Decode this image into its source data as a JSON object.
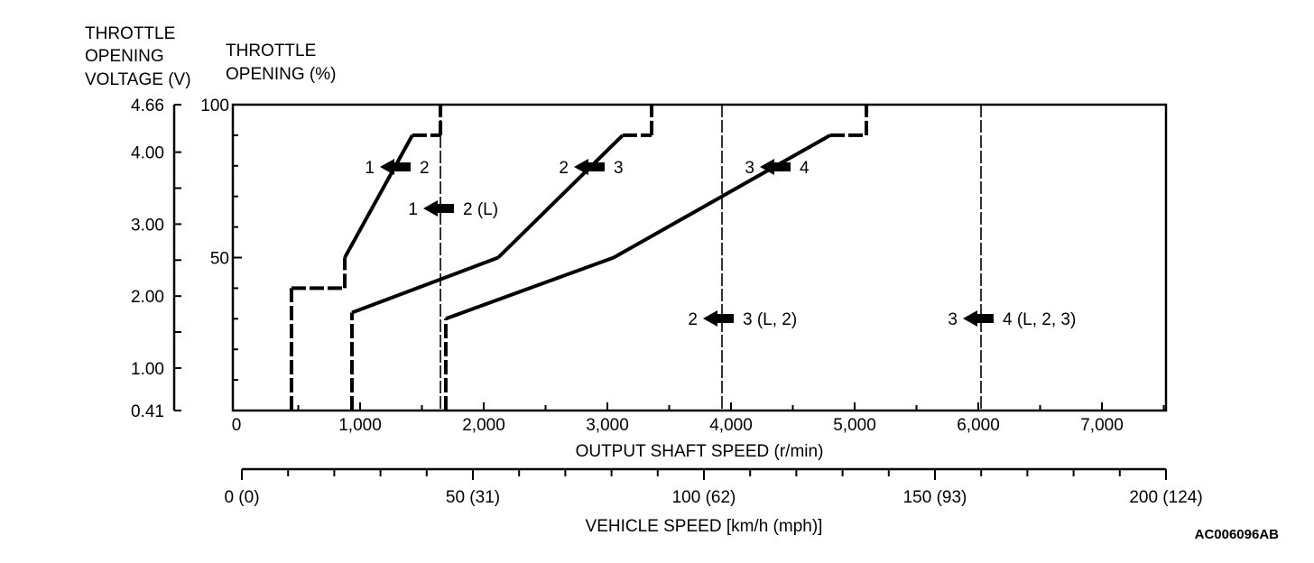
{
  "chart_data": {
    "type": "line",
    "title": "",
    "code": "AC006096AB",
    "y_left_label": [
      "THROTTLE",
      "OPENING",
      "VOLTAGE (V)"
    ],
    "y_label": [
      "THROTTLE",
      "OPENING (%)"
    ],
    "xlabel": "OUTPUT SHAFT SPEED (r/min)",
    "x2label": "VEHICLE SPEED [km/h (mph)]",
    "xlim": [
      0,
      7500
    ],
    "ylim": [
      0,
      100
    ],
    "voltage_lim": [
      0.41,
      4.66
    ],
    "x_ticks": [
      "0",
      "1,000",
      "2,000",
      "3,000",
      "4,000",
      "5,000",
      "6,000",
      "7,000"
    ],
    "x_tick_values": [
      0,
      1000,
      2000,
      3000,
      4000,
      5000,
      6000,
      7000
    ],
    "y_ticks": [
      "100",
      "50"
    ],
    "y_tick_values": [
      100,
      50
    ],
    "voltage_ticks": [
      "4.66",
      "4.00",
      "3.00",
      "2.00",
      "1.00",
      "0.41"
    ],
    "voltage_tick_values": [
      4.66,
      4.0,
      3.0,
      2.0,
      1.0,
      0.41
    ],
    "vehicle_speed_ticks": [
      "0 (0)",
      "50 (31)",
      "100 (62)",
      "150 (93)",
      "200 (124)"
    ],
    "vehicle_speed_tick_values": [
      0,
      50,
      100,
      150,
      200
    ],
    "vehicle_speed_lim": [
      0,
      200
    ],
    "series": [
      {
        "name": "1 ← 2",
        "points": [
          [
            445,
            0
          ],
          [
            445,
            40
          ],
          [
            876,
            40
          ],
          [
            876,
            50
          ],
          [
            1423,
            90
          ],
          [
            1650,
            90
          ],
          [
            1650,
            100
          ]
        ]
      },
      {
        "name": "2 ← 3",
        "points": [
          [
            934,
            0
          ],
          [
            934,
            32
          ],
          [
            2117,
            50
          ],
          [
            3124,
            90
          ],
          [
            3358,
            90
          ],
          [
            3358,
            100
          ]
        ]
      },
      {
        "name": "3 ← 4",
        "points": [
          [
            1693,
            0
          ],
          [
            1693,
            30
          ],
          [
            3051,
            50
          ],
          [
            4803,
            90
          ],
          [
            5095,
            90
          ],
          [
            5095,
            100
          ]
        ]
      }
    ],
    "fixed_lines": [
      {
        "name": "1 ← 2 (L)",
        "x": 1650
      },
      {
        "name": "2 ← 3 (L, 2)",
        "x": 3927
      },
      {
        "name": "3 ← 4 (L, 2, 3)",
        "x": 6022
      }
    ],
    "annotations": [
      {
        "from": "1",
        "to": "2"
      },
      {
        "from": "1",
        "to": "2 (L)"
      },
      {
        "from": "2",
        "to": "3"
      },
      {
        "from": "3",
        "to": "4"
      },
      {
        "from": "2",
        "to": "3 (L, 2)"
      },
      {
        "from": "3",
        "to": "4 (L, 2, 3)"
      }
    ]
  }
}
